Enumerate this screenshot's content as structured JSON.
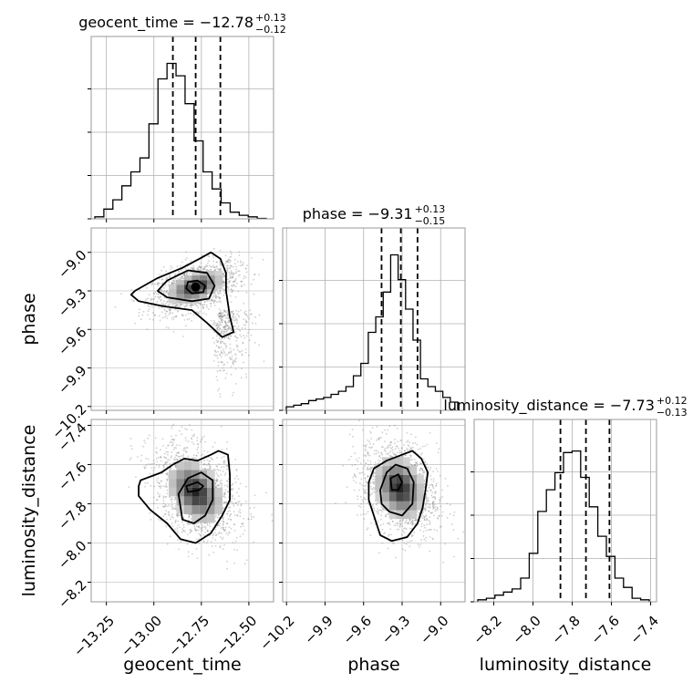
{
  "chart_data": {
    "type": "corner",
    "parameters": [
      {
        "name": "geocent_time",
        "title_main": "geocent_time = −12.78",
        "title_sup": "+0.13",
        "title_sub": "−0.12",
        "median": -12.78,
        "q16": -12.9,
        "q84": -12.65,
        "range": [
          -13.33,
          -12.37
        ],
        "ticks": [
          -13.25,
          -13.0,
          -12.75,
          -12.5
        ],
        "tick_labels": [
          "−13.25",
          "−13.00",
          "−12.75",
          "−12.50"
        ],
        "axis_label": "geocent_time",
        "histogram": [
          0.01,
          0.06,
          0.12,
          0.21,
          0.3,
          0.39,
          0.61,
          0.9,
          1.0,
          0.92,
          0.74,
          0.5,
          0.3,
          0.19,
          0.1,
          0.04,
          0.02,
          0.01,
          0.0
        ]
      },
      {
        "name": "phase",
        "title_main": "phase = −9.31",
        "title_sup": "+0.13",
        "title_sub": "−0.15",
        "median": -9.31,
        "q16": -9.46,
        "q84": -9.18,
        "range": [
          -10.23,
          -8.81
        ],
        "ticks": [
          -10.2,
          -9.9,
          -9.6,
          -9.3,
          -9.0
        ],
        "tick_labels": [
          "−10.2",
          "−9.9",
          "−9.6",
          "−9.3",
          "−9.0"
        ],
        "axis_label": "phase",
        "histogram": [
          0.02,
          0.03,
          0.04,
          0.06,
          0.07,
          0.08,
          0.1,
          0.12,
          0.15,
          0.22,
          0.3,
          0.5,
          0.6,
          0.76,
          1.0,
          0.84,
          0.65,
          0.45,
          0.2,
          0.15,
          0.12,
          0.08,
          0.05
        ]
      },
      {
        "name": "luminosity_distance",
        "title_main": "luminosity_distance = −7.73",
        "title_sup": "+0.12",
        "title_sub": "−0.13",
        "median": -7.73,
        "q16": -7.86,
        "q84": -7.61,
        "range": [
          -8.3,
          -7.37
        ],
        "ticks": [
          -8.2,
          -8.0,
          -7.8,
          -7.6,
          -7.4
        ],
        "tick_labels": [
          "−8.2",
          "−8.0",
          "−7.8",
          "−7.6",
          "−7.4"
        ],
        "axis_label": "luminosity_distance",
        "histogram": [
          0.01,
          0.02,
          0.04,
          0.06,
          0.08,
          0.15,
          0.31,
          0.58,
          0.72,
          0.83,
          0.96,
          0.97,
          0.8,
          0.61,
          0.42,
          0.29,
          0.15,
          0.09,
          0.02,
          0.01
        ]
      }
    ],
    "pairs": [
      {
        "x": "geocent_time",
        "y": "phase",
        "center": [
          -12.78,
          -9.27
        ],
        "spread": [
          0.09,
          0.08
        ],
        "correlation": 0.45,
        "contours": [
          [
            [
              -12.82,
              -9.23
            ],
            [
              -12.77,
              -9.22
            ],
            [
              -12.73,
              -9.26
            ],
            [
              -12.74,
              -9.31
            ],
            [
              -12.8,
              -9.32
            ],
            [
              -12.83,
              -9.28
            ]
          ],
          [
            [
              -12.93,
              -9.22
            ],
            [
              -12.82,
              -9.14
            ],
            [
              -12.72,
              -9.16
            ],
            [
              -12.68,
              -9.26
            ],
            [
              -12.71,
              -9.36
            ],
            [
              -12.8,
              -9.38
            ],
            [
              -12.93,
              -9.35
            ],
            [
              -12.98,
              -9.3
            ]
          ],
          [
            [
              -13.1,
              -9.3
            ],
            [
              -12.98,
              -9.2
            ],
            [
              -12.85,
              -9.12
            ],
            [
              -12.76,
              -9.05
            ],
            [
              -12.7,
              -9.0
            ],
            [
              -12.65,
              -9.05
            ],
            [
              -12.62,
              -9.16
            ],
            [
              -12.62,
              -9.3
            ],
            [
              -12.6,
              -9.5
            ],
            [
              -12.58,
              -9.62
            ],
            [
              -12.64,
              -9.66
            ],
            [
              -12.72,
              -9.55
            ],
            [
              -12.8,
              -9.45
            ],
            [
              -12.95,
              -9.42
            ],
            [
              -13.08,
              -9.38
            ],
            [
              -13.12,
              -9.33
            ]
          ]
        ]
      },
      {
        "x": "geocent_time",
        "y": "luminosity_distance",
        "center": [
          -12.78,
          -7.74
        ],
        "spread": [
          0.09,
          0.1
        ],
        "correlation": -0.35,
        "contours": [
          [
            [
              -12.83,
              -7.71
            ],
            [
              -12.77,
              -7.69
            ],
            [
              -12.74,
              -7.71
            ],
            [
              -12.76,
              -7.73
            ],
            [
              -12.82,
              -7.74
            ]
          ],
          [
            [
              -12.87,
              -7.75
            ],
            [
              -12.82,
              -7.67
            ],
            [
              -12.75,
              -7.64
            ],
            [
              -12.69,
              -7.68
            ],
            [
              -12.69,
              -7.78
            ],
            [
              -12.73,
              -7.86
            ],
            [
              -12.79,
              -7.9
            ],
            [
              -12.85,
              -7.88
            ]
          ],
          [
            [
              -13.07,
              -7.68
            ],
            [
              -12.96,
              -7.64
            ],
            [
              -12.9,
              -7.6
            ],
            [
              -12.84,
              -7.57
            ],
            [
              -12.77,
              -7.58
            ],
            [
              -12.7,
              -7.55
            ],
            [
              -12.66,
              -7.53
            ],
            [
              -12.61,
              -7.55
            ],
            [
              -12.6,
              -7.65
            ],
            [
              -12.6,
              -7.78
            ],
            [
              -12.64,
              -7.86
            ],
            [
              -12.7,
              -7.95
            ],
            [
              -12.78,
              -8.0
            ],
            [
              -12.86,
              -7.98
            ],
            [
              -12.93,
              -7.9
            ],
            [
              -13.02,
              -7.83
            ],
            [
              -13.08,
              -7.76
            ],
            [
              -13.08,
              -7.71
            ]
          ]
        ]
      },
      {
        "x": "phase",
        "y": "luminosity_distance",
        "center": [
          -9.32,
          -7.72
        ],
        "spread": [
          0.12,
          0.1
        ],
        "correlation": -0.25,
        "contours": [
          [
            [
              -9.39,
              -7.67
            ],
            [
              -9.33,
              -7.65
            ],
            [
              -9.3,
              -7.69
            ],
            [
              -9.33,
              -7.73
            ],
            [
              -9.38,
              -7.73
            ]
          ],
          [
            [
              -9.47,
              -7.73
            ],
            [
              -9.42,
              -7.64
            ],
            [
              -9.35,
              -7.6
            ],
            [
              -9.26,
              -7.62
            ],
            [
              -9.21,
              -7.69
            ],
            [
              -9.22,
              -7.8
            ],
            [
              -9.3,
              -7.86
            ],
            [
              -9.4,
              -7.84
            ],
            [
              -9.46,
              -7.8
            ]
          ],
          [
            [
              -9.56,
              -7.69
            ],
            [
              -9.52,
              -7.62
            ],
            [
              -9.42,
              -7.58
            ],
            [
              -9.3,
              -7.55
            ],
            [
              -9.22,
              -7.53
            ],
            [
              -9.15,
              -7.57
            ],
            [
              -9.1,
              -7.64
            ],
            [
              -9.12,
              -7.74
            ],
            [
              -9.14,
              -7.82
            ],
            [
              -9.18,
              -7.9
            ],
            [
              -9.26,
              -7.97
            ],
            [
              -9.38,
              -7.99
            ],
            [
              -9.47,
              -7.96
            ],
            [
              -9.52,
              -7.86
            ],
            [
              -9.56,
              -7.78
            ]
          ]
        ]
      }
    ],
    "grid": true,
    "quantile_lines": "dashed"
  }
}
